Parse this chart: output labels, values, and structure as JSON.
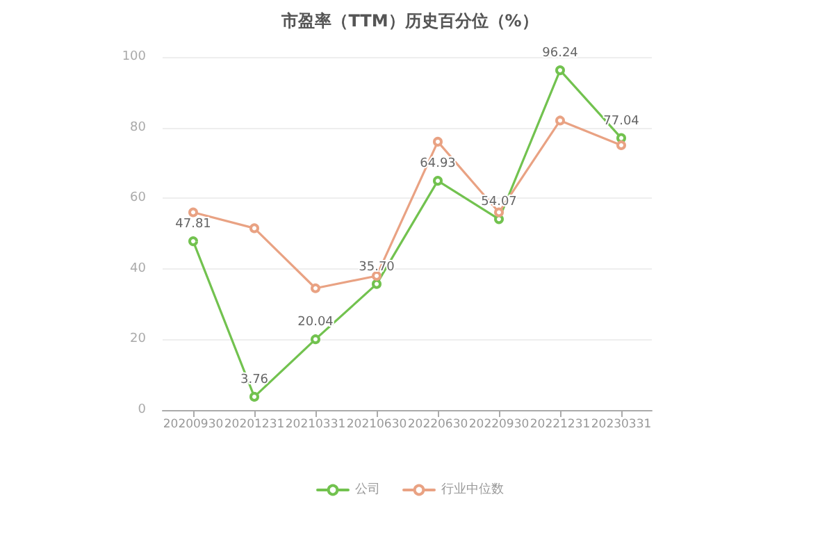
{
  "chart_data": {
    "type": "line",
    "title": "市盈率（TTM）历史百分位（%）",
    "categories": [
      "20200930",
      "20201231",
      "20210331",
      "20210630",
      "20220630",
      "20220930",
      "20221231",
      "20230331"
    ],
    "series": [
      {
        "name": "公司",
        "color": "#72c24f",
        "values": [
          47.81,
          3.76,
          20.04,
          35.7,
          64.93,
          54.07,
          96.24,
          77.04
        ],
        "value_labels": [
          "47.81",
          "3.76",
          "20.04",
          "35.70",
          "64.93",
          "54.07",
          "96.24",
          "77.04"
        ]
      },
      {
        "name": "行业中位数",
        "color": "#e9a283",
        "values": [
          56,
          51.5,
          34.5,
          38,
          76,
          56,
          82,
          75
        ]
      }
    ],
    "ylim": [
      0,
      100
    ],
    "yticks": [
      0,
      20,
      40,
      60,
      80,
      100
    ],
    "grid": "y",
    "legend": "bottom",
    "marker": "circle"
  }
}
